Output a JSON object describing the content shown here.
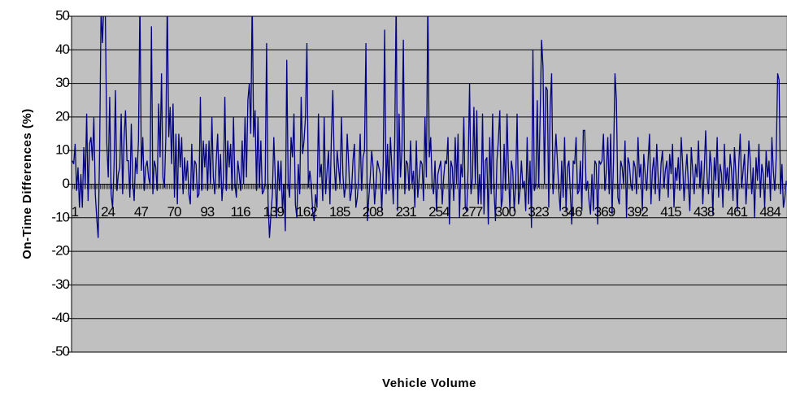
{
  "chart_data": {
    "type": "line",
    "x_label": "Vehicle Volume",
    "y_label": "On-Time Differences (%)",
    "ylim": [
      -50,
      50
    ],
    "yticks": [
      -50,
      -40,
      -30,
      -20,
      -10,
      0,
      10,
      20,
      30,
      40,
      50
    ],
    "grid": true,
    "background": "#c0c0c0",
    "categories": [
      "1",
      null,
      null,
      null,
      null,
      null,
      null,
      null,
      null,
      null,
      null,
      null,
      null,
      null,
      null,
      null,
      null,
      null,
      null,
      null,
      null,
      null,
      null,
      "24",
      null,
      null,
      null,
      null,
      null,
      null,
      null,
      null,
      null,
      null,
      null,
      null,
      null,
      null,
      null,
      null,
      null,
      null,
      null,
      null,
      null,
      null,
      "47",
      null,
      null,
      null,
      null,
      null,
      null,
      null,
      null,
      null,
      null,
      null,
      null,
      null,
      null,
      null,
      null,
      null,
      null,
      null,
      null,
      null,
      null,
      "70",
      null,
      null,
      null,
      null,
      null,
      null,
      null,
      null,
      null,
      null,
      null,
      null,
      null,
      null,
      null,
      null,
      null,
      null,
      null,
      null,
      null,
      null,
      "93",
      null,
      null,
      null,
      null,
      null,
      null,
      null,
      null,
      null,
      null,
      null,
      null,
      null,
      null,
      null,
      null,
      null,
      null,
      null,
      null,
      null,
      null,
      "116",
      null,
      null,
      null,
      null,
      null,
      null,
      null,
      null,
      null,
      null,
      null,
      null,
      null,
      null,
      null,
      null,
      null,
      null,
      null,
      null,
      null,
      null,
      "139",
      null,
      null,
      null,
      null,
      null,
      null,
      null,
      null,
      null,
      null,
      null,
      null,
      null,
      null,
      null,
      null,
      null,
      null,
      null,
      null,
      null,
      null,
      "162",
      null,
      null,
      null,
      null,
      null,
      null,
      null,
      null,
      null,
      null,
      null,
      null,
      null,
      null,
      null,
      null,
      null,
      null,
      null,
      null,
      null,
      null,
      "185",
      null,
      null,
      null,
      null,
      null,
      null,
      null,
      null,
      null,
      null,
      null,
      null,
      null,
      null,
      null,
      null,
      null,
      null,
      null,
      null,
      null,
      null,
      "208",
      null,
      null,
      null,
      null,
      null,
      null,
      null,
      null,
      null,
      null,
      null,
      null,
      null,
      null,
      null,
      null,
      null,
      null,
      null,
      null,
      null,
      null,
      "231",
      null,
      null,
      null,
      null,
      null,
      null,
      null,
      null,
      null,
      null,
      null,
      null,
      null,
      null,
      null,
      null,
      null,
      null,
      null,
      null,
      null,
      null,
      "254",
      null,
      null,
      null,
      null,
      null,
      null,
      null,
      null,
      null,
      null,
      null,
      null,
      null,
      null,
      null,
      null,
      null,
      null,
      null,
      null,
      null,
      null,
      "277",
      null,
      null,
      null,
      null,
      null,
      null,
      null,
      null,
      null,
      null,
      null,
      null,
      null,
      null,
      null,
      null,
      null,
      null,
      null,
      null,
      null,
      null,
      "300",
      null,
      null,
      null,
      null,
      null,
      null,
      null,
      null,
      null,
      null,
      null,
      null,
      null,
      null,
      null,
      null,
      null,
      null,
      null,
      null,
      null,
      null,
      "323",
      null,
      null,
      null,
      null,
      null,
      null,
      null,
      null,
      null,
      null,
      null,
      null,
      null,
      null,
      null,
      null,
      null,
      null,
      null,
      null,
      null,
      null,
      "346",
      null,
      null,
      null,
      null,
      null,
      null,
      null,
      null,
      null,
      null,
      null,
      null,
      null,
      null,
      null,
      null,
      null,
      null,
      null,
      null,
      null,
      null,
      "369",
      null,
      null,
      null,
      null,
      null,
      null,
      null,
      null,
      null,
      null,
      null,
      null,
      null,
      null,
      null,
      null,
      null,
      null,
      null,
      null,
      null,
      null,
      "392",
      null,
      null,
      null,
      null,
      null,
      null,
      null,
      null,
      null,
      null,
      null,
      null,
      null,
      null,
      null,
      null,
      null,
      null,
      null,
      null,
      null,
      null,
      "415",
      null,
      null,
      null,
      null,
      null,
      null,
      null,
      null,
      null,
      null,
      null,
      null,
      null,
      null,
      null,
      null,
      null,
      null,
      null,
      null,
      null,
      null,
      "438",
      null,
      null,
      null,
      null,
      null,
      null,
      null,
      null,
      null,
      null,
      null,
      null,
      null,
      null,
      null,
      null,
      null,
      null,
      null,
      null,
      null,
      null,
      "461",
      null,
      null,
      null,
      null,
      null,
      null,
      null,
      null,
      null,
      null,
      null,
      null,
      null,
      null,
      null,
      null,
      null,
      null,
      null,
      null,
      null,
      null,
      "484",
      null,
      null,
      null,
      null,
      null,
      null,
      null,
      null,
      null,
      null,
      null,
      null,
      null
    ],
    "series": [
      {
        "color": "#000080",
        "values": [
          7,
          6,
          12,
          -2,
          5,
          -7,
          3,
          -7,
          11,
          0,
          21,
          -5,
          12,
          14,
          7,
          20,
          -3,
          -10,
          -16,
          10,
          52,
          42,
          55,
          50,
          12,
          2,
          26,
          -3,
          -7,
          5,
          28,
          -2,
          3,
          5,
          21,
          -3,
          14,
          22,
          7,
          7,
          -4,
          18,
          1,
          -5,
          8,
          3,
          13,
          55,
          4,
          14,
          -2,
          5,
          7,
          2,
          0,
          47,
          -3,
          7,
          5,
          -2,
          24,
          8,
          33,
          2,
          -1,
          14,
          55,
          14,
          23,
          6,
          24,
          -4,
          15,
          -6,
          15,
          5,
          14,
          -3,
          8,
          1,
          7,
          -3,
          -6,
          12,
          -2,
          7,
          6,
          -4,
          -3,
          26,
          -2,
          13,
          5,
          12,
          -2,
          13,
          0,
          20,
          2,
          -3,
          7,
          15,
          -1,
          9,
          -5,
          2,
          26,
          -2,
          13,
          5,
          12,
          -2,
          20,
          0,
          -4,
          7,
          3,
          -2,
          13,
          0,
          20,
          2,
          25,
          30,
          15,
          55,
          14,
          22,
          -2,
          20,
          -1,
          13,
          -3,
          -2,
          0,
          42,
          -5,
          -16,
          -9,
          -3,
          14,
          2,
          -10,
          7,
          -2,
          7,
          -8,
          0,
          -14,
          37,
          0,
          -4,
          14,
          8,
          21,
          -6,
          -10,
          6,
          -3,
          26,
          9,
          13,
          20,
          42,
          -1,
          4,
          0,
          -8,
          -11,
          -3,
          -7,
          21,
          2,
          6,
          -5,
          20,
          -3,
          4,
          10,
          -6,
          14,
          28,
          6,
          -2,
          10,
          5,
          0,
          20,
          3,
          -4,
          0,
          15,
          6,
          -5,
          -2,
          7,
          12,
          -7,
          -4,
          2,
          15,
          -2,
          8,
          10,
          42,
          -11,
          -4,
          2,
          10,
          5,
          -6,
          0,
          7,
          5,
          3,
          -8,
          6,
          46,
          -3,
          12,
          -2,
          14,
          5,
          -6,
          13,
          55,
          -8,
          21,
          2,
          10,
          43,
          -3,
          7,
          6,
          -2,
          13,
          0,
          4,
          -7,
          13,
          -4,
          2,
          7,
          6,
          -5,
          20,
          2,
          56,
          8,
          14,
          0,
          -3,
          7,
          -8,
          3,
          5,
          7,
          -6,
          2,
          7,
          6,
          14,
          -12,
          7,
          5,
          -5,
          14,
          0,
          15,
          -10,
          6,
          2,
          20,
          -7,
          -8,
          5,
          30,
          -3,
          2,
          23,
          0,
          22,
          -6,
          3,
          -6,
          21,
          -9,
          7,
          8,
          -12,
          14,
          -3,
          21,
          -2,
          -11,
          7,
          13,
          22,
          -7,
          -4,
          12,
          -2,
          21,
          4,
          -8,
          7,
          4,
          -8,
          0,
          21,
          -6,
          -2,
          7,
          -1,
          1,
          -8,
          14,
          -6,
          7,
          -13,
          40,
          -2,
          0,
          25,
          -1,
          20,
          43,
          35,
          0,
          29,
          28,
          -7,
          23,
          33,
          -3,
          6,
          15,
          7,
          -2,
          -8,
          7,
          -4,
          14,
          -8,
          5,
          7,
          -3,
          -12,
          7,
          6,
          14,
          -3,
          -2,
          7,
          -8,
          16,
          16,
          -2,
          1,
          -5,
          -9,
          3,
          -8,
          7,
          6,
          -12,
          7,
          6,
          7,
          15,
          -2,
          4,
          14,
          -3,
          15,
          -9,
          7,
          33,
          25,
          -4,
          -6,
          7,
          5,
          0,
          13,
          -10,
          8,
          6,
          0,
          -2,
          7,
          5,
          -3,
          14,
          2,
          6,
          -8,
          9,
          3,
          -2,
          7,
          15,
          -6,
          4,
          8,
          -3,
          12,
          2,
          -5,
          6,
          10,
          -1,
          4,
          7,
          -4,
          9,
          3,
          12,
          -7,
          5,
          1,
          8,
          -2,
          14,
          6,
          -5,
          3,
          9,
          0,
          -8,
          11,
          4,
          -3,
          6,
          2,
          13,
          -1,
          7,
          -6,
          4,
          16,
          2,
          -3,
          10,
          5,
          -9,
          8,
          1,
          14,
          -4,
          6,
          3,
          -7,
          12,
          0,
          5,
          -2,
          9,
          4,
          -5,
          11,
          3,
          -8,
          6,
          15,
          -1,
          4,
          9,
          -6,
          2,
          13,
          7,
          -3,
          5,
          -10,
          8,
          1,
          12,
          -4,
          6,
          3,
          -7,
          10,
          2,
          7,
          -5,
          14,
          4,
          -2,
          8,
          33,
          31,
          -3,
          6,
          -7,
          -4,
          1
        ]
      }
    ]
  }
}
